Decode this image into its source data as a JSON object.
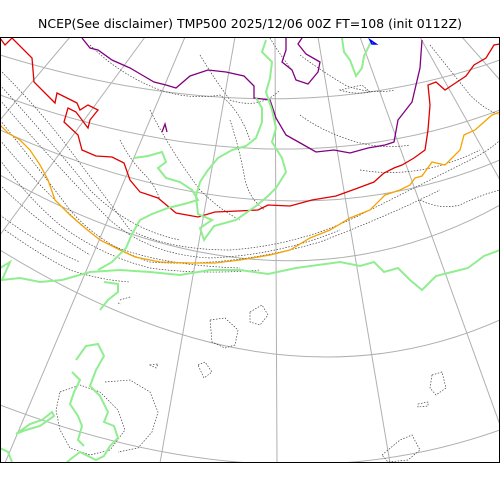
{
  "title": "NCEP(See disclaimer) TMP500 2025/12/06 00Z FT=108 (init 0112Z)",
  "colors": {
    "graticule": "#b0b0b0",
    "coastline": "#404040",
    "background": "#ffffff",
    "contour_red": "#e00000",
    "contour_orange": "#f5a300",
    "contour_purple": "#800080",
    "contour_green": "#90ee90",
    "contour_blue": "#0000ff",
    "contour_gray": "#555555"
  }
}
